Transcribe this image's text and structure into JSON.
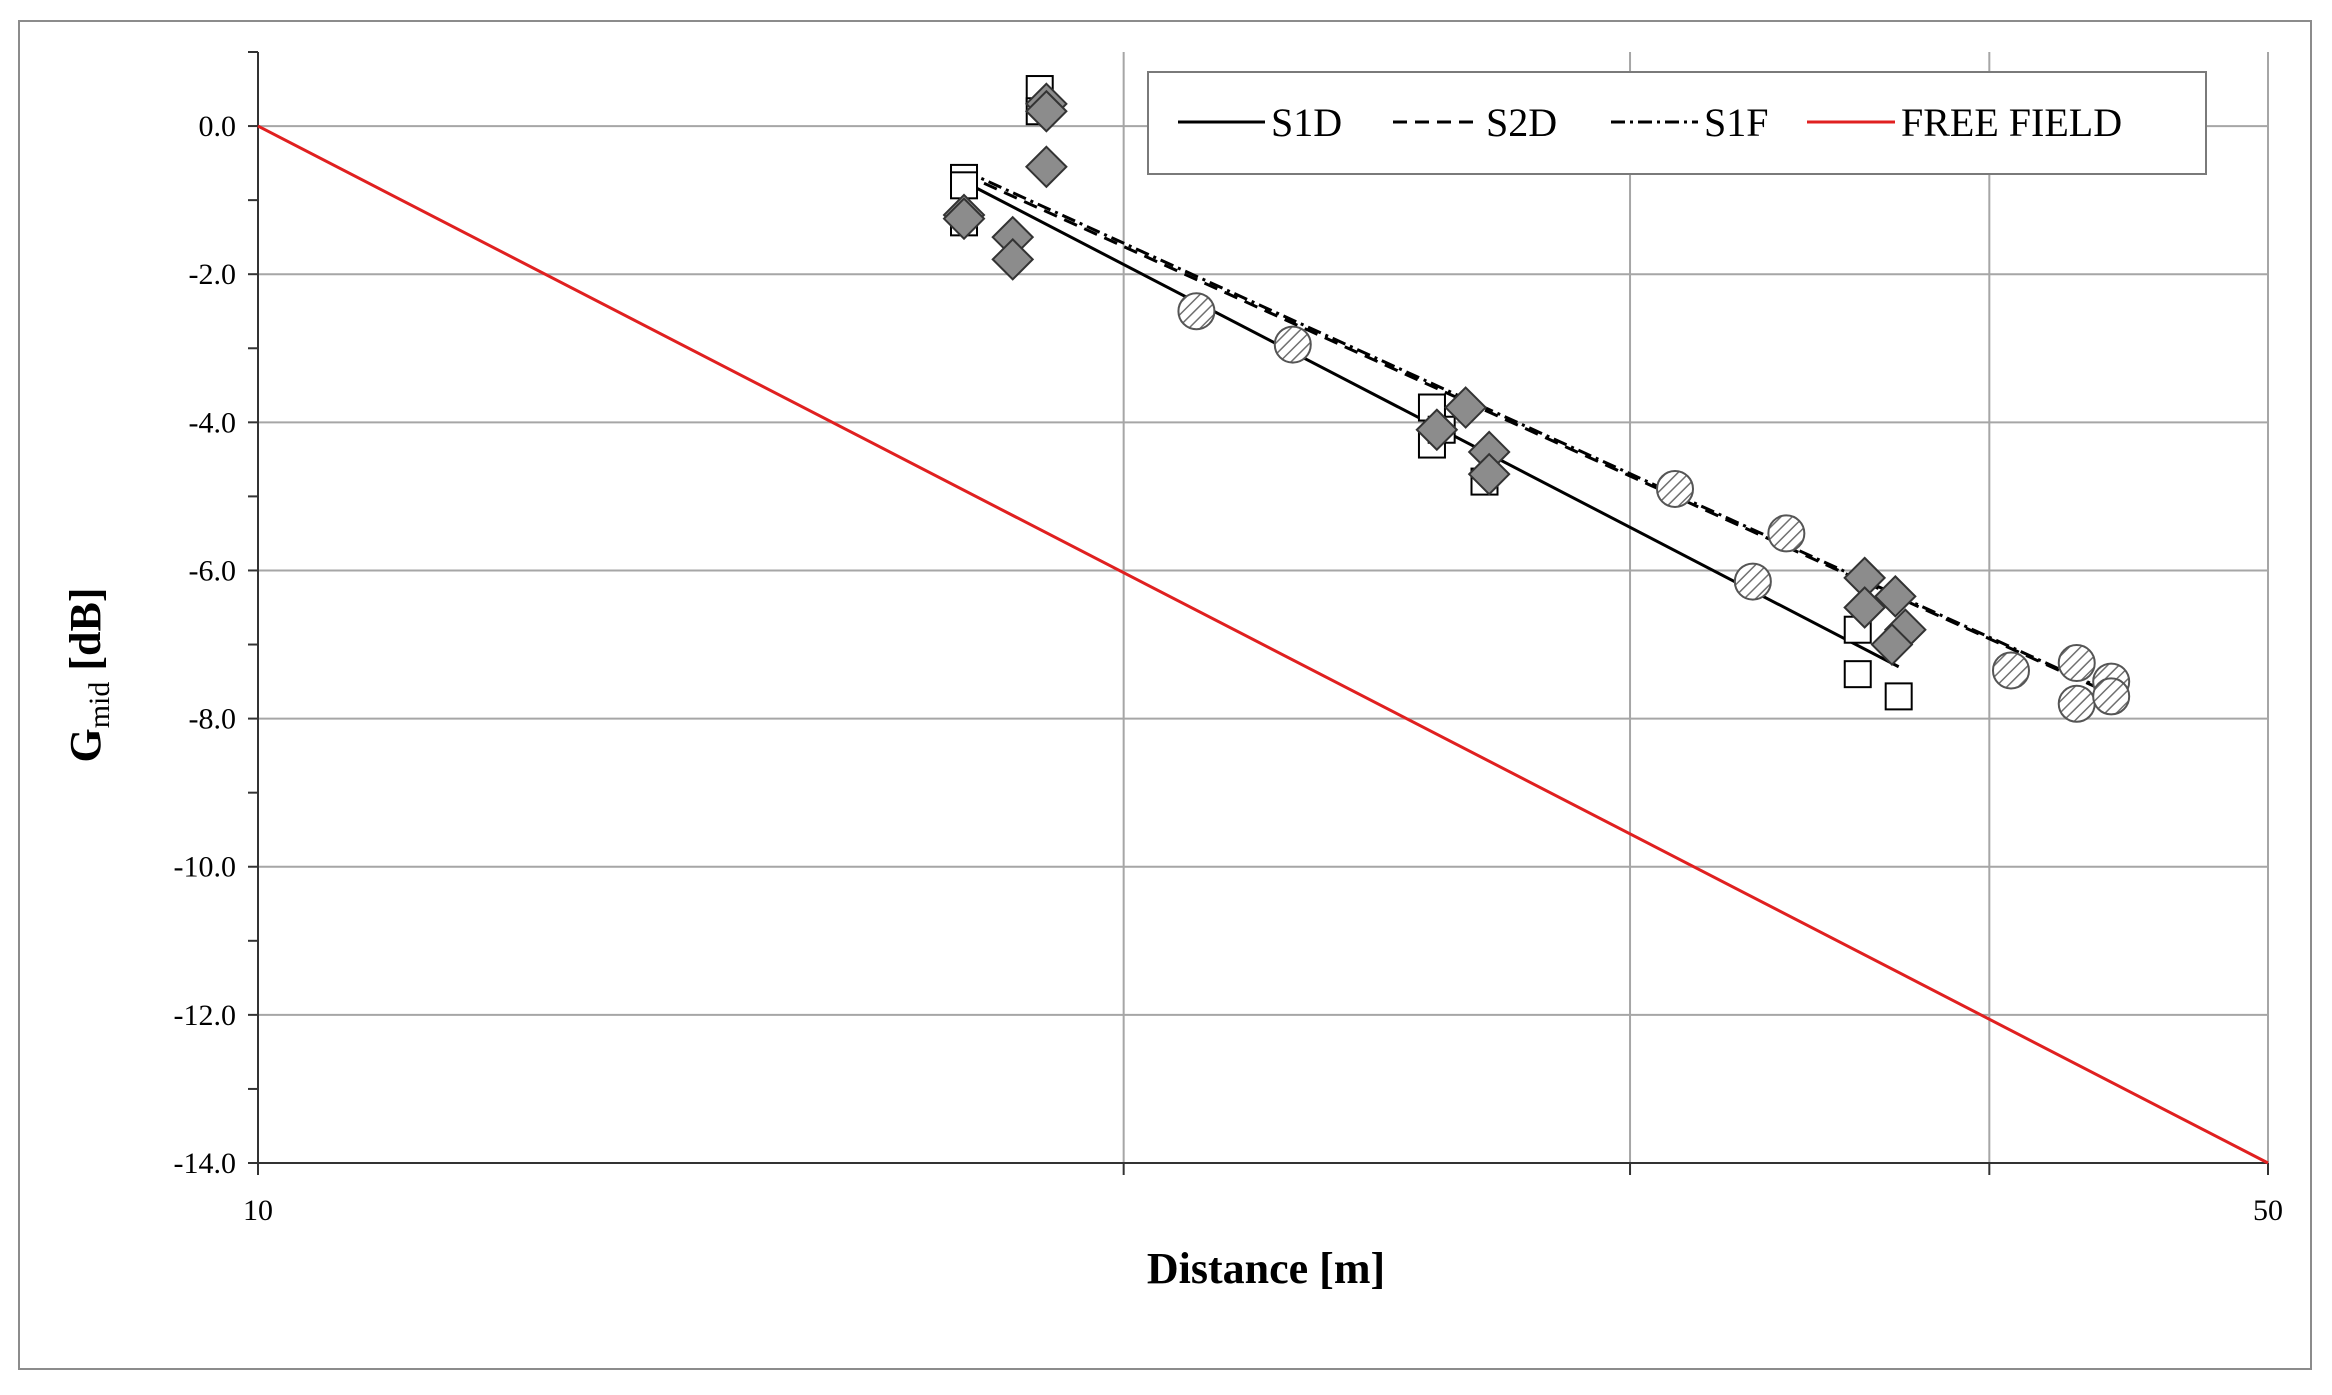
{
  "chart_data": {
    "type": "scatter",
    "title": "",
    "xlabel": "Distance [m]",
    "ylabel_main": "G",
    "ylabel_sub": "mid",
    "ylabel_unit": " [dB]",
    "x_scale": "log",
    "xlim": [
      10,
      50
    ],
    "ylim": [
      -14,
      1
    ],
    "x_ticks": [
      10,
      50
    ],
    "x_tick_labels": [
      "10",
      "50"
    ],
    "x_gridlines": [
      20,
      30,
      40
    ],
    "y_ticks": [
      0,
      -2,
      -4,
      -6,
      -8,
      -10,
      -12,
      -14
    ],
    "y_tick_labels": [
      "0.0",
      "-2.0",
      "-4.0",
      "-6.0",
      "-8.0",
      "-10.0",
      "-12.0",
      "-14.0"
    ],
    "grid": true,
    "legend": {
      "placement": "top-right",
      "entries": [
        {
          "name": "S1D",
          "style": "solid",
          "color": "#000000"
        },
        {
          "name": "S2D",
          "style": "dashed",
          "color": "#000000"
        },
        {
          "name": "S1F",
          "style": "dashdot",
          "color": "#000000"
        },
        {
          "name": "FREE FIELD",
          "style": "solid",
          "color": "#e02020"
        }
      ]
    },
    "series": [
      {
        "name": "S1D",
        "marker": "open-square",
        "points": [
          [
            17.6,
            -0.7
          ],
          [
            17.6,
            -0.8
          ],
          [
            17.6,
            -1.3
          ],
          [
            18.7,
            0.5
          ],
          [
            18.7,
            0.2
          ],
          [
            25.6,
            -3.8
          ],
          [
            25.6,
            -4.3
          ],
          [
            25.8,
            -4.1
          ],
          [
            26.7,
            -4.8
          ],
          [
            36.0,
            -6.8
          ],
          [
            36.0,
            -7.4
          ],
          [
            37.2,
            -7.7
          ]
        ],
        "fit": [
          [
            17.6,
            -0.75
          ],
          [
            37.2,
            -7.3
          ]
        ]
      },
      {
        "name": "S2D",
        "marker": "gray-diamond",
        "points": [
          [
            17.6,
            -1.2
          ],
          [
            17.6,
            -1.25
          ],
          [
            18.3,
            -1.5
          ],
          [
            18.3,
            -1.8
          ],
          [
            18.8,
            0.3
          ],
          [
            18.8,
            0.2
          ],
          [
            18.8,
            -0.55
          ],
          [
            25.7,
            -4.1
          ],
          [
            26.3,
            -3.8
          ],
          [
            26.8,
            -4.4
          ],
          [
            26.8,
            -4.7
          ],
          [
            36.2,
            -6.1
          ],
          [
            36.2,
            -6.5
          ],
          [
            37.1,
            -6.35
          ],
          [
            37.4,
            -6.8
          ],
          [
            37.0,
            -7.0
          ]
        ],
        "fit": [
          [
            17.6,
            -0.65
          ],
          [
            44.0,
            -7.65
          ]
        ]
      },
      {
        "name": "S1F",
        "marker": "hatched-circle",
        "points": [
          [
            21.2,
            -2.5
          ],
          [
            22.9,
            -2.95
          ],
          [
            31.1,
            -4.9
          ],
          [
            34.0,
            -5.5
          ],
          [
            33.1,
            -6.15
          ],
          [
            40.7,
            -7.35
          ],
          [
            42.9,
            -7.25
          ],
          [
            42.9,
            -7.8
          ],
          [
            44.1,
            -7.5
          ],
          [
            44.1,
            -7.7
          ]
        ],
        "fit": [
          [
            17.6,
            -0.6
          ],
          [
            44.1,
            -7.65
          ]
        ]
      },
      {
        "name": "FREE FIELD",
        "marker": "none",
        "color": "#e02020",
        "points": [
          [
            10,
            0.0
          ],
          [
            50,
            -14.0
          ]
        ]
      }
    ]
  }
}
